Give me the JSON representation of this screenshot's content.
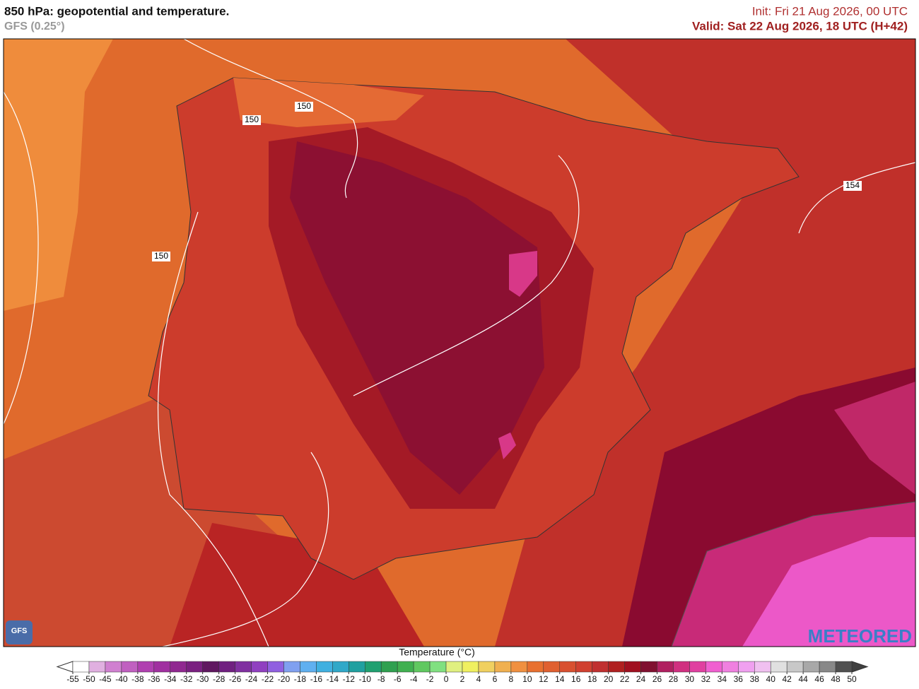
{
  "header": {
    "title": "850 hPa: geopotential and temperature.",
    "subtitle": "GFS (0.25°)",
    "init": "Init: Fri 21 Aug 2026, 00 UTC",
    "valid": "Valid: Sat 22 Aug 2026, 18 UTC (H+42)"
  },
  "map": {
    "contour_labels": [
      "150",
      "150",
      "150",
      "154"
    ],
    "logos": [
      "GFS",
      "METEORED"
    ]
  },
  "colorbar": {
    "title": "Temperature (°C)",
    "ticks": [
      -55,
      -50,
      -45,
      -40,
      -38,
      -36,
      -34,
      -32,
      -30,
      -28,
      -26,
      -24,
      -22,
      -20,
      -18,
      -16,
      -14,
      -12,
      -10,
      -8,
      -6,
      -4,
      -2,
      0,
      2,
      4,
      6,
      8,
      10,
      12,
      14,
      16,
      18,
      20,
      22,
      24,
      26,
      28,
      30,
      32,
      34,
      36,
      38,
      40,
      42,
      44,
      46,
      48,
      50
    ],
    "colors": [
      "#ffffff",
      "#e0b0e0",
      "#d080d0",
      "#c060c0",
      "#b040b0",
      "#a030a0",
      "#902890",
      "#7a2080",
      "#601860",
      "#702080",
      "#8030a0",
      "#9040c0",
      "#9060e0",
      "#80a0f0",
      "#60b0f0",
      "#40b0e0",
      "#30a8c8",
      "#20a0a0",
      "#20a070",
      "#30a050",
      "#40b050",
      "#60c860",
      "#80e080",
      "#e0f080",
      "#f0f060",
      "#f0d060",
      "#f0b050",
      "#f09040",
      "#e87030",
      "#e06030",
      "#d85030",
      "#d04030",
      "#c03030",
      "#b02020",
      "#a01020",
      "#801030",
      "#b02060",
      "#d03080",
      "#e040a0",
      "#f060d0",
      "#f080e0",
      "#f0a0f0",
      "#f0c0f0",
      "#e0e0e0",
      "#c8c8c8",
      "#a8a8a8",
      "#888888",
      "#505050"
    ]
  }
}
